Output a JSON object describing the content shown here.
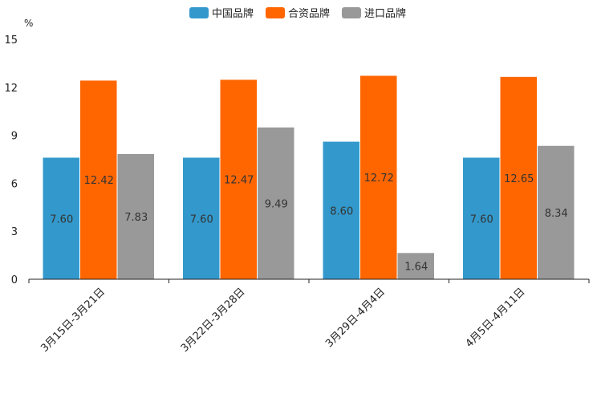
{
  "chart_data": {
    "type": "bar",
    "y_unit": "%",
    "categories": [
      "3月15日-3月21日",
      "3月22日-3月28日",
      "3月29日-4月4日",
      "4月5日-4月11日"
    ],
    "series": [
      {
        "name": "中国品牌",
        "color": "#3399cc",
        "values": [
          7.6,
          7.6,
          8.6,
          7.6
        ]
      },
      {
        "name": "合资品牌",
        "color": "#ff6600",
        "values": [
          12.42,
          12.47,
          12.72,
          12.65
        ]
      },
      {
        "name": "进口品牌",
        "color": "#999999",
        "values": [
          7.83,
          9.49,
          1.64,
          8.34
        ]
      }
    ],
    "ylim": [
      0,
      15
    ],
    "yticks": [
      0,
      3,
      6,
      9,
      12,
      15
    ],
    "legend_position": "top-center",
    "grid": false
  }
}
